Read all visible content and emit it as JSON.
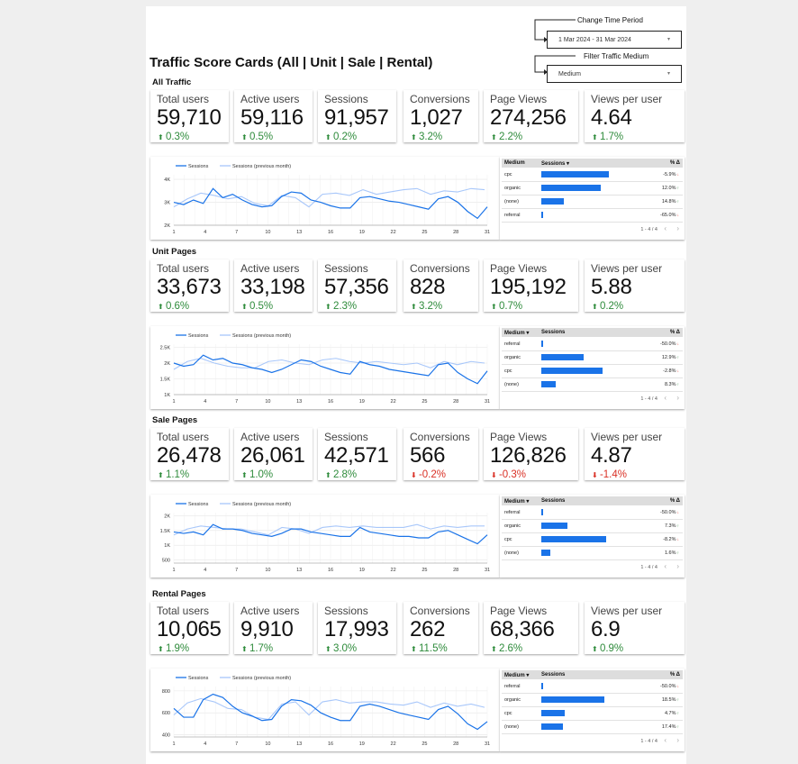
{
  "header": {
    "title": "Traffic Score Cards (All | Unit | Sale | Rental)",
    "date_control": {
      "label": "Change Time Period",
      "value": "1 Mar 2024 - 31 Mar 2024"
    },
    "medium_control": {
      "label": "Filter Traffic Medium",
      "value": "Medium"
    }
  },
  "colors": {
    "series": "#1a73e8",
    "series_prev": "#a8c7fa",
    "up": "#2e8b3b",
    "down": "#d93025"
  },
  "sections": [
    {
      "title": "All Traffic",
      "cards": [
        {
          "label": "Total users",
          "value": "59,710",
          "delta": "0.3%",
          "dir": "up"
        },
        {
          "label": "Active users",
          "value": "59,116",
          "delta": "0.5%",
          "dir": "up"
        },
        {
          "label": "Sessions",
          "value": "91,957",
          "delta": "0.2%",
          "dir": "up"
        },
        {
          "label": "Conversions",
          "value": "1,027",
          "delta": "3.2%",
          "dir": "up"
        },
        {
          "label": "Page Views",
          "value": "274,256",
          "delta": "2.2%",
          "dir": "up"
        },
        {
          "label": "Views per user",
          "value": "4.64",
          "delta": "1.7%",
          "dir": "up"
        }
      ],
      "chart_data": {
        "type": "line",
        "legend": [
          "Sessions",
          "Sessions (previous month)"
        ],
        "x_ticks": [
          "1",
          "4",
          "7",
          "10",
          "13",
          "16",
          "19",
          "22",
          "25",
          "28",
          "31"
        ],
        "y_ticks": [
          "2K",
          "3K",
          "4K"
        ],
        "ylim": [
          2000,
          4200
        ],
        "series": [
          {
            "name": "Sessions",
            "values": [
              3000,
              2900,
              3100,
              2950,
              3600,
              3200,
              3350,
              3100,
              2900,
              2800,
              2850,
              3250,
              3450,
              3400,
              3100,
              3000,
              2850,
              2750,
              2750,
              3200,
              3250,
              3150,
              3050,
              3000,
              2900,
              2800,
              2700,
              3150,
              3250,
              3000,
              2600,
              2300,
              2800
            ]
          },
          {
            "name": "Sessions (previous month)",
            "values": [
              2800,
              3150,
              3400,
              3300,
              3150,
              3250,
              2950,
              2850,
              3300,
              3200,
              2800,
              3350,
              3400,
              3300,
              3550,
              3350,
              3450,
              3550,
              3600,
              3350,
              3500,
              3450,
              3600,
              3550
            ]
          }
        ]
      },
      "table": {
        "headers": [
          "Medium",
          "Sessions ▾",
          "% Δ"
        ],
        "rows": [
          {
            "medium": "cpc",
            "share": 0.75,
            "delta": "-5.9%",
            "dir": "down"
          },
          {
            "medium": "organic",
            "share": 0.66,
            "delta": "12.0%",
            "dir": "up"
          },
          {
            "medium": "(none)",
            "share": 0.25,
            "delta": "14.8%",
            "dir": "up"
          },
          {
            "medium": "referral",
            "share": 0.02,
            "delta": "-65.0%",
            "dir": "down"
          }
        ],
        "pagination": "1 - 4 / 4"
      }
    },
    {
      "title": "Unit Pages",
      "cards": [
        {
          "label": "Total users",
          "value": "33,673",
          "delta": "0.6%",
          "dir": "up"
        },
        {
          "label": "Active users",
          "value": "33,198",
          "delta": "0.5%",
          "dir": "up"
        },
        {
          "label": "Sessions",
          "value": "57,356",
          "delta": "2.3%",
          "dir": "up"
        },
        {
          "label": "Conversions",
          "value": "828",
          "delta": "3.2%",
          "dir": "up"
        },
        {
          "label": "Page Views",
          "value": "195,192",
          "delta": "0.7%",
          "dir": "up"
        },
        {
          "label": "Views per user",
          "value": "5.88",
          "delta": "0.2%",
          "dir": "up"
        }
      ],
      "chart_data": {
        "type": "line",
        "legend": [
          "Sessions",
          "Sessions (previous month)"
        ],
        "x_ticks": [
          "1",
          "4",
          "7",
          "10",
          "13",
          "16",
          "19",
          "22",
          "25",
          "28",
          "31"
        ],
        "y_ticks": [
          "1K",
          "1.5K",
          "2K",
          "2.5K"
        ],
        "ylim": [
          1000,
          2600
        ],
        "series": [
          {
            "name": "Sessions",
            "values": [
              2000,
              1900,
              1950,
              2250,
              2100,
              2150,
              2000,
              1950,
              1850,
              1800,
              1700,
              1800,
              1950,
              2100,
              2050,
              1900,
              1800,
              1700,
              1650,
              2050,
              1950,
              1900,
              1800,
              1750,
              1700,
              1650,
              1600,
              1950,
              2000,
              1700,
              1500,
              1350,
              1750
            ]
          },
          {
            "name": "Sessions (previous month)",
            "values": [
              1800,
              2050,
              2150,
              2000,
              1900,
              1850,
              1850,
              2050,
              2100,
              2000,
              1950,
              2100,
              2150,
              2050,
              2000,
              2050,
              2000,
              1950,
              2000,
              1850,
              2050,
              1950,
              2050,
              2000
            ]
          }
        ]
      },
      "table": {
        "headers": [
          "Medium ▾",
          "Sessions",
          "% Δ"
        ],
        "rows": [
          {
            "medium": "referral",
            "share": 0.01,
            "delta": "-50.0%",
            "dir": "down"
          },
          {
            "medium": "organic",
            "share": 0.47,
            "delta": "12.9%",
            "dir": "up"
          },
          {
            "medium": "cpc",
            "share": 0.68,
            "delta": "-2.8%",
            "dir": "down"
          },
          {
            "medium": "(none)",
            "share": 0.16,
            "delta": "8.3%",
            "dir": "up"
          }
        ],
        "pagination": "1 - 4 / 4"
      }
    },
    {
      "title": "Sale Pages",
      "cards": [
        {
          "label": "Total users",
          "value": "26,478",
          "delta": "1.1%",
          "dir": "up"
        },
        {
          "label": "Active users",
          "value": "26,061",
          "delta": "1.0%",
          "dir": "up"
        },
        {
          "label": "Sessions",
          "value": "42,571",
          "delta": "2.8%",
          "dir": "up"
        },
        {
          "label": "Conversions",
          "value": "566",
          "delta": "-0.2%",
          "dir": "down"
        },
        {
          "label": "Page Views",
          "value": "126,826",
          "delta": "-0.3%",
          "dir": "down"
        },
        {
          "label": "Views per user",
          "value": "4.87",
          "delta": "-1.4%",
          "dir": "down"
        }
      ],
      "chart_data": {
        "type": "line",
        "legend": [
          "Sessions",
          "Sessions (previous month)"
        ],
        "x_ticks": [
          "1",
          "4",
          "7",
          "10",
          "13",
          "16",
          "19",
          "22",
          "25",
          "28",
          "31"
        ],
        "y_ticks": [
          "500",
          "1K",
          "1.5K",
          "2K"
        ],
        "ylim": [
          400,
          2100
        ],
        "series": [
          {
            "name": "Sessions",
            "values": [
              1450,
              1400,
              1450,
              1350,
              1700,
              1550,
              1550,
              1500,
              1400,
              1350,
              1300,
              1400,
              1550,
              1550,
              1450,
              1400,
              1350,
              1300,
              1300,
              1600,
              1450,
              1400,
              1350,
              1300,
              1300,
              1250,
              1250,
              1450,
              1500,
              1350,
              1200,
              1050,
              1350
            ]
          },
          {
            "name": "Sessions (previous month)",
            "values": [
              1350,
              1550,
              1650,
              1600,
              1550,
              1550,
              1450,
              1350,
              1600,
              1550,
              1400,
              1600,
              1650,
              1600,
              1650,
              1600,
              1600,
              1600,
              1700,
              1550,
              1650,
              1600,
              1650,
              1650
            ]
          }
        ]
      },
      "table": {
        "headers": [
          "Medium ▾",
          "Sessions",
          "% Δ"
        ],
        "rows": [
          {
            "medium": "referral",
            "share": 0.01,
            "delta": "-50.0%",
            "dir": "down"
          },
          {
            "medium": "organic",
            "share": 0.29,
            "delta": "7.3%",
            "dir": "up"
          },
          {
            "medium": "cpc",
            "share": 0.72,
            "delta": "-8.2%",
            "dir": "down"
          },
          {
            "medium": "(none)",
            "share": 0.1,
            "delta": "1.6%",
            "dir": "up"
          }
        ],
        "pagination": "1 - 4 / 4"
      }
    },
    {
      "title": "Rental Pages",
      "cards": [
        {
          "label": "Total users",
          "value": "10,065",
          "delta": "1.9%",
          "dir": "up"
        },
        {
          "label": "Active users",
          "value": "9,910",
          "delta": "1.7%",
          "dir": "up"
        },
        {
          "label": "Sessions",
          "value": "17,993",
          "delta": "3.0%",
          "dir": "up"
        },
        {
          "label": "Conversions",
          "value": "262",
          "delta": "11.5%",
          "dir": "up"
        },
        {
          "label": "Page Views",
          "value": "68,366",
          "delta": "2.6%",
          "dir": "up"
        },
        {
          "label": "Views per user",
          "value": "6.9",
          "delta": "0.9%",
          "dir": "up"
        }
      ],
      "chart_data": {
        "type": "line",
        "legend": [
          "Sessions",
          "Sessions (previous month)"
        ],
        "x_ticks": [
          "1",
          "4",
          "7",
          "10",
          "13",
          "16",
          "19",
          "22",
          "25",
          "28",
          "31"
        ],
        "y_ticks": [
          "400",
          "600",
          "800"
        ],
        "ylim": [
          380,
          840
        ],
        "series": [
          {
            "name": "Sessions",
            "values": [
              640,
              560,
              560,
              720,
              770,
              740,
              660,
              600,
              570,
              530,
              540,
              660,
              720,
              710,
              670,
              600,
              560,
              530,
              530,
              660,
              680,
              660,
              630,
              600,
              580,
              560,
              540,
              630,
              660,
              590,
              500,
              450,
              520
            ]
          },
          {
            "name": "Sessions (previous month)",
            "values": [
              580,
              690,
              730,
              700,
              640,
              630,
              560,
              540,
              680,
              700,
              580,
              700,
              720,
              690,
              700,
              700,
              680,
              670,
              700,
              650,
              690,
              660,
              680,
              650
            ]
          }
        ]
      },
      "table": {
        "headers": [
          "Medium ▾",
          "Sessions",
          "% Δ"
        ],
        "rows": [
          {
            "medium": "referral",
            "share": 0.01,
            "delta": "-50.0%",
            "dir": "down"
          },
          {
            "medium": "organic",
            "share": 0.7,
            "delta": "18.5%",
            "dir": "up"
          },
          {
            "medium": "cpc",
            "share": 0.26,
            "delta": "4.7%",
            "dir": "up"
          },
          {
            "medium": "(none)",
            "share": 0.24,
            "delta": "17.4%",
            "dir": "up"
          }
        ],
        "pagination": "1 - 4 / 4"
      }
    }
  ]
}
